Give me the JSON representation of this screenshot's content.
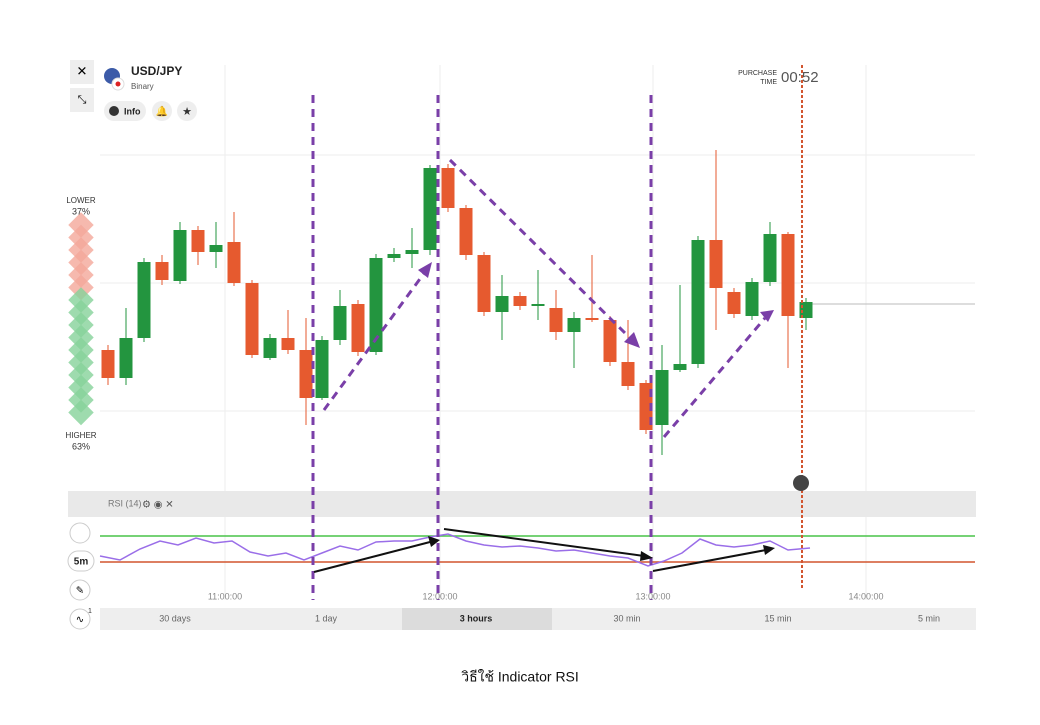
{
  "header": {
    "symbol": "USD/JPY",
    "mode": "Binary",
    "info": "Info",
    "purchase_label": [
      "PURCHASE",
      "TIME"
    ],
    "purchase_time": "00:52"
  },
  "sidebar": {
    "lower_label": "LOWER",
    "lower_pct": "37%",
    "higher_label": "HIGHER",
    "higher_pct": "63%"
  },
  "indicator": {
    "name": "RSI (14)"
  },
  "toolbar": {
    "timeframe": "5m",
    "badge": "1"
  },
  "time_labels": [
    "11:00:00",
    "12:00:00",
    "13:00:00",
    "14:00:00"
  ],
  "periods": [
    "30 days",
    "1 day",
    "3 hours",
    "30 min",
    "15 min",
    "5 min"
  ],
  "caption": "วิธีใช้ Indicator  RSI"
}
